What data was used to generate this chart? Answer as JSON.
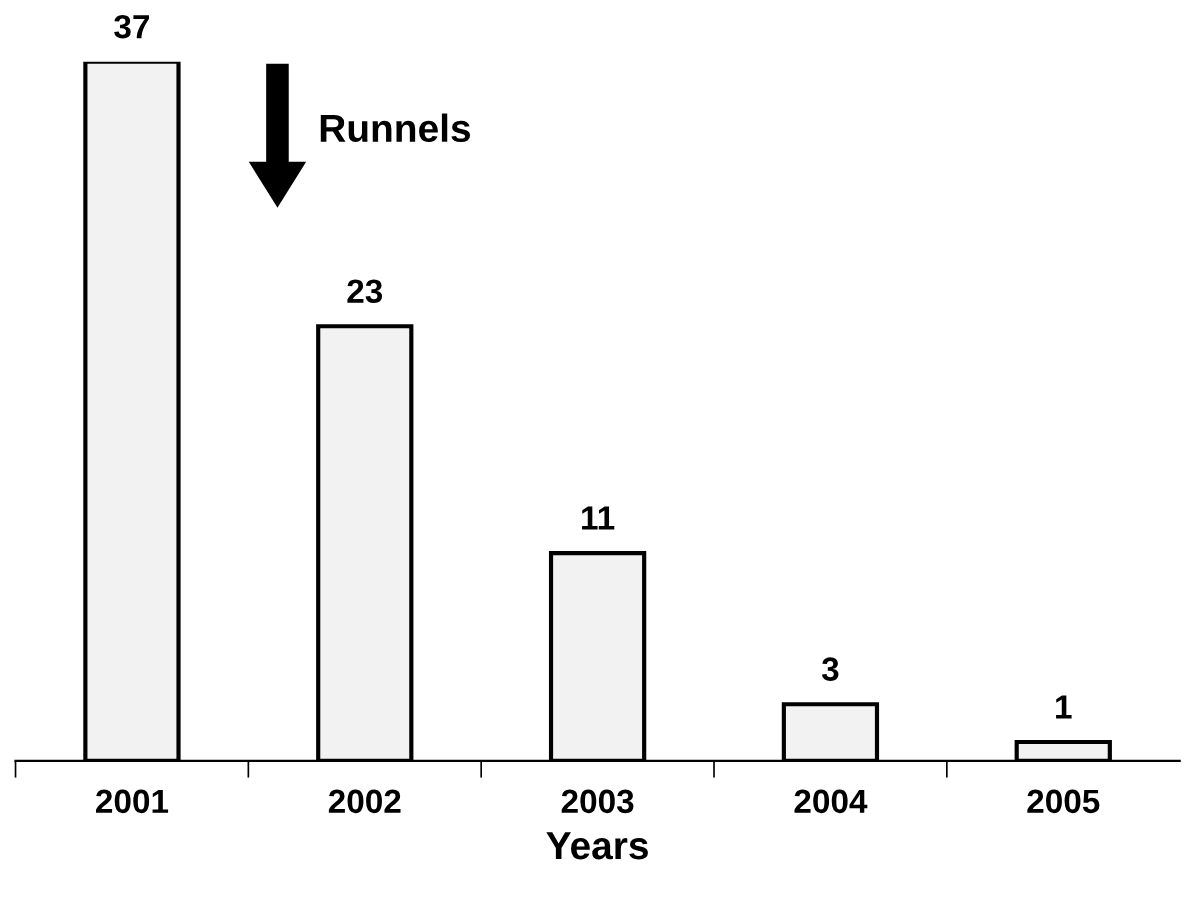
{
  "chart_data": {
    "type": "bar",
    "xlabel": "Years",
    "categories": [
      "2001",
      "2002",
      "2003",
      "2004",
      "2005"
    ],
    "values": [
      37,
      23,
      11,
      3,
      1
    ],
    "color": "#f2f2f2",
    "data_labels": true,
    "grid": false,
    "legend": false,
    "annotations": [
      "Runnels"
    ]
  }
}
